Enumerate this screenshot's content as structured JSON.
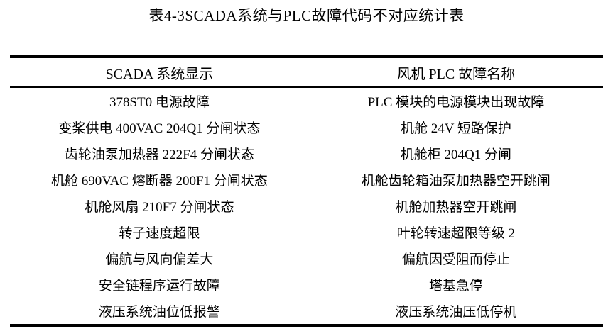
{
  "caption": "表4-3SCADA系统与PLC故障代码不对应统计表",
  "table": {
    "columns": [
      "SCADA 系统显示",
      "风机 PLC 故障名称"
    ],
    "rows": [
      {
        "scada": "378ST0 电源故障",
        "plc": "PLC 模块的电源模块出现故障"
      },
      {
        "scada": "变桨供电 400VAC 204Q1 分闸状态",
        "plc": "机舱 24V 短路保护"
      },
      {
        "scada": "齿轮油泵加热器 222F4 分闸状态",
        "plc": "机舱柜 204Q1 分闸"
      },
      {
        "scada": "机舱 690VAC 熔断器 200F1 分闸状态",
        "plc": "机舱齿轮箱油泵加热器空开跳闸"
      },
      {
        "scada": "机舱风扇 210F7 分闸状态",
        "plc": "机舱加热器空开跳闸"
      },
      {
        "scada": "转子速度超限",
        "plc": "叶轮转速超限等级 2"
      },
      {
        "scada": "偏航与风向偏差大",
        "plc": "偏航因受阻而停止"
      },
      {
        "scada": "安全链程序运行故障",
        "plc": "塔基急停"
      },
      {
        "scada": "液压系统油位低报警",
        "plc": "液压系统油压低停机"
      }
    ]
  },
  "colors": {
    "text": "#000000",
    "background": "#ffffff",
    "rule": "#000000"
  }
}
